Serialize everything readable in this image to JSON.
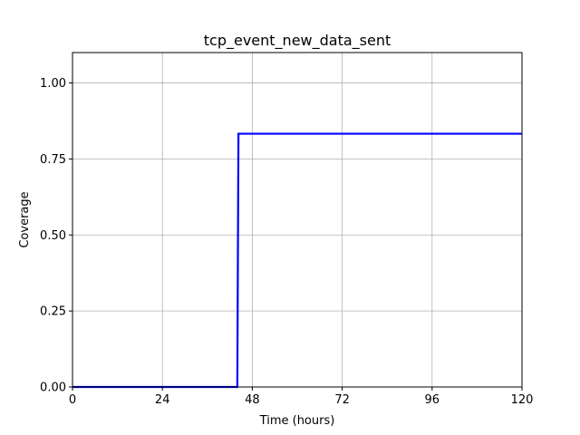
{
  "chart_data": {
    "type": "line",
    "title": "tcp_event_new_data_sent",
    "xlabel": "Time (hours)",
    "ylabel": "Coverage",
    "xlim": [
      0,
      120
    ],
    "ylim": [
      0,
      1.1
    ],
    "xticks": [
      0,
      24,
      48,
      72,
      96,
      120
    ],
    "xtick_labels": [
      "0",
      "24",
      "48",
      "72",
      "96",
      "120"
    ],
    "yticks": [
      0.0,
      0.25,
      0.5,
      0.75,
      1.0
    ],
    "ytick_labels": [
      "0.00",
      "0.25",
      "0.50",
      "0.75",
      "1.00"
    ],
    "grid": true,
    "series": [
      {
        "color": "#0000ff",
        "x": [
          0,
          44,
          44.3,
          120
        ],
        "y": [
          0,
          0,
          0.833,
          0.833
        ]
      }
    ]
  }
}
